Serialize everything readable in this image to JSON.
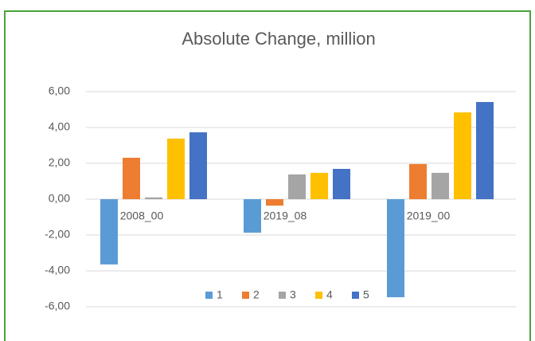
{
  "chart_data": {
    "type": "bar",
    "title": "Absolute Change, million",
    "categories": [
      "2008_00",
      "2019_08",
      "2019_00"
    ],
    "series": [
      {
        "name": "1",
        "color": "#5b9bd5",
        "values": [
          -3.64,
          -1.87,
          -5.47
        ]
      },
      {
        "name": "2",
        "color": "#ed7d31",
        "values": [
          2.31,
          -0.36,
          1.96
        ]
      },
      {
        "name": "3",
        "color": "#a5a5a5",
        "values": [
          0.1,
          1.38,
          1.47
        ]
      },
      {
        "name": "4",
        "color": "#ffc000",
        "values": [
          3.38,
          1.47,
          4.84
        ]
      },
      {
        "name": "5",
        "color": "#4472c4",
        "values": [
          3.73,
          1.69,
          5.42
        ]
      }
    ],
    "ylim": [
      -6,
      6
    ],
    "yticks": [
      {
        "value": -6,
        "label": "-6,00"
      },
      {
        "value": -4,
        "label": "-4,00"
      },
      {
        "value": -2,
        "label": "-2,00"
      },
      {
        "value": 0,
        "label": "0,00"
      },
      {
        "value": 2,
        "label": "2,00"
      },
      {
        "value": 4,
        "label": "4,00"
      },
      {
        "value": 6,
        "label": "6,00"
      }
    ],
    "grid": true,
    "legend": "bottom"
  }
}
